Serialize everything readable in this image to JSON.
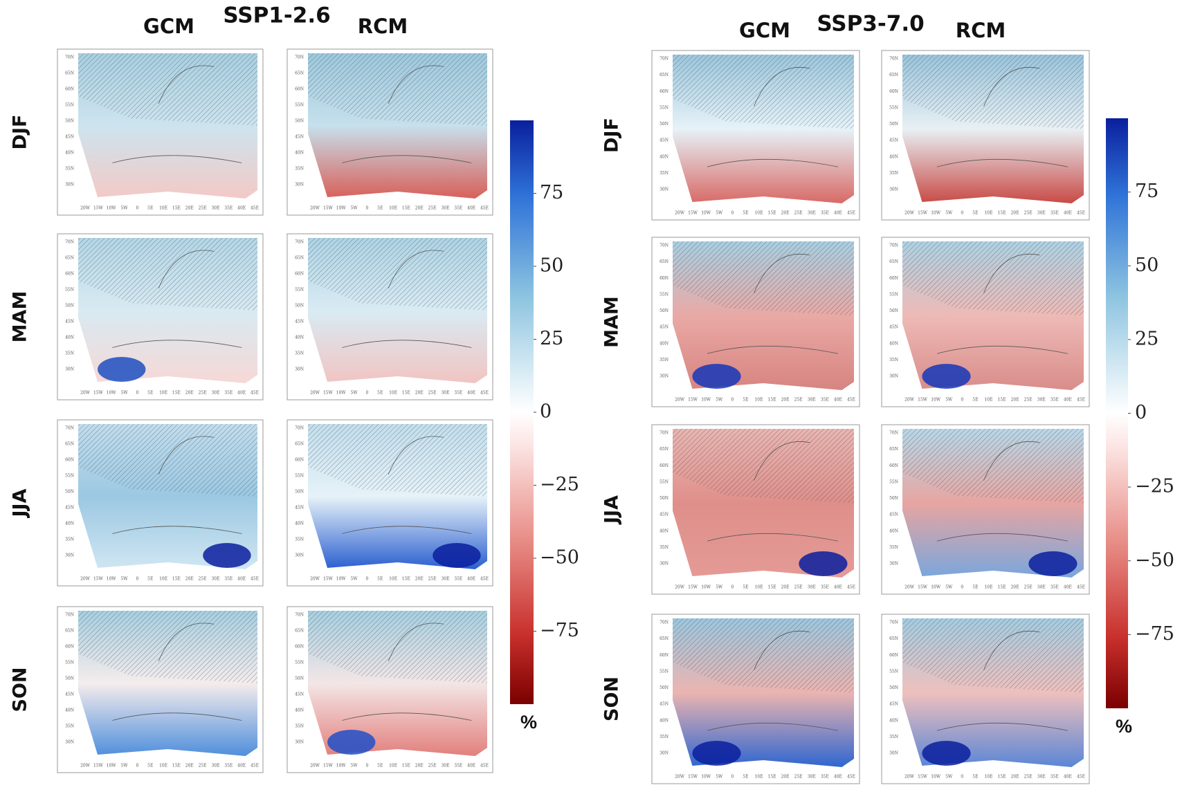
{
  "figure_groups": [
    {
      "scenario": "SSP1-2.6",
      "columns": [
        "GCM",
        "RCM"
      ],
      "rows": [
        "DJF",
        "MAM",
        "JJA",
        "SON"
      ],
      "colorbar": {
        "ylim": [
          -100,
          100
        ],
        "yticks": [
          {
            "value": -75,
            "label": "−75"
          },
          {
            "value": -50,
            "label": "−50"
          },
          {
            "value": -25,
            "label": "−25"
          },
          0,
          25,
          50,
          75
        ],
        "unit": "%"
      }
    },
    {
      "scenario": "SSP3-7.0",
      "columns": [
        "GCM",
        "RCM"
      ],
      "rows": [
        "DJF",
        "MAM",
        "JJA",
        "SON"
      ],
      "colorbar": {
        "ylim": [
          -100,
          100
        ],
        "yticks": [
          {
            "value": -75,
            "label": "−75"
          },
          {
            "value": -50,
            "label": "−50"
          },
          {
            "value": -25,
            "label": "−25"
          },
          0,
          25,
          50,
          75
        ],
        "unit": "%"
      }
    }
  ],
  "map_axes": {
    "lat_ticks": [
      "70N",
      "65N",
      "60N",
      "55N",
      "50N",
      "45N",
      "40N",
      "35N",
      "30N"
    ],
    "lon_ticks": [
      "20W",
      "15W",
      "10W",
      "5W",
      "0",
      "5E",
      "10E",
      "15E",
      "20E",
      "25E",
      "30E",
      "35E",
      "40E",
      "45E"
    ]
  }
}
